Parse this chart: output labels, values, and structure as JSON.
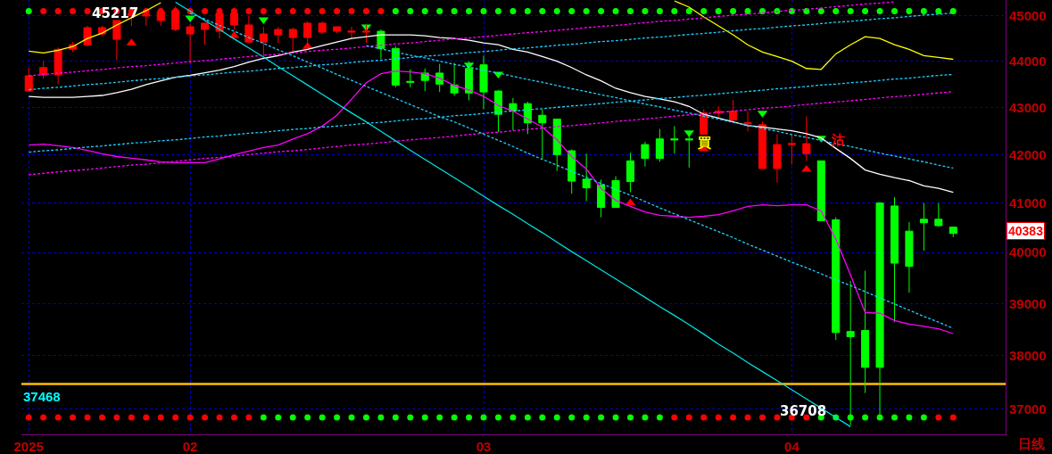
{
  "chart_data": {
    "type": "candlestick",
    "categories": [
      "2025",
      null,
      null,
      null,
      null,
      null,
      null,
      null,
      null,
      null,
      null,
      "02",
      null,
      null,
      null,
      null,
      null,
      null,
      null,
      null,
      null,
      null,
      null,
      null,
      null,
      null,
      null,
      null,
      null,
      null,
      null,
      "03",
      null,
      null,
      null,
      null,
      null,
      null,
      null,
      null,
      null,
      null,
      null,
      null,
      null,
      null,
      null,
      null,
      null,
      null,
      null,
      null,
      "04",
      null,
      null,
      null,
      null,
      null,
      null,
      null,
      null,
      null,
      null,
      null
    ],
    "ohlc": [
      [
        43350,
        43860,
        43330,
        43680
      ],
      [
        43700,
        44000,
        43620,
        43860
      ],
      [
        43700,
        44300,
        43500,
        44260
      ],
      [
        44260,
        44420,
        44200,
        44360
      ],
      [
        44360,
        44780,
        44320,
        44740
      ],
      [
        44600,
        44780,
        44560,
        44740
      ],
      [
        44480,
        44900,
        44020,
        44900
      ],
      [
        45000,
        45100,
        44780,
        45060
      ],
      [
        45000,
        45100,
        44780,
        45040
      ],
      [
        44900,
        45180,
        44780,
        45100
      ],
      [
        44700,
        45217,
        44660,
        45120
      ],
      [
        44600,
        44820,
        43940,
        44760
      ],
      [
        44700,
        44840,
        44360,
        44840
      ],
      [
        44660,
        45100,
        44500,
        45060
      ],
      [
        44800,
        45180,
        44700,
        45060
      ],
      [
        44420,
        45000,
        44400,
        44800
      ],
      [
        44420,
        44760,
        44100,
        44600
      ],
      [
        44580,
        44760,
        44400,
        44700
      ],
      [
        44520,
        44740,
        44200,
        44700
      ],
      [
        44520,
        44880,
        44320,
        44840
      ],
      [
        44640,
        44880,
        44600,
        44840
      ],
      [
        44660,
        44760,
        44620,
        44760
      ],
      [
        44640,
        44760,
        44500,
        44660
      ],
      [
        44640,
        44800,
        44400,
        44660
      ],
      [
        44660,
        44700,
        44040,
        44280
      ],
      [
        44280,
        44320,
        43430,
        43480
      ],
      [
        43560,
        43820,
        43430,
        43540
      ],
      [
        43740,
        43840,
        43350,
        43580
      ],
      [
        43740,
        43940,
        43330,
        43500
      ],
      [
        43480,
        43960,
        43250,
        43310
      ],
      [
        43840,
        44000,
        43150,
        43310
      ],
      [
        43920,
        44120,
        42960,
        43330
      ],
      [
        43350,
        43370,
        42470,
        42850
      ],
      [
        43080,
        43200,
        42510,
        42920
      ],
      [
        43080,
        43120,
        42430,
        42670
      ],
      [
        42830,
        42960,
        41920,
        42670
      ],
      [
        42750,
        42750,
        41660,
        42000
      ],
      [
        42080,
        42110,
        41190,
        41450
      ],
      [
        41490,
        42020,
        41040,
        41310
      ],
      [
        41370,
        41480,
        40710,
        40910
      ],
      [
        41460,
        41550,
        40910,
        40910
      ],
      [
        41870,
        42040,
        41220,
        41440
      ],
      [
        42210,
        42270,
        41750,
        41920
      ],
      [
        42330,
        42540,
        41850,
        41920
      ],
      [
        42330,
        42600,
        42020,
        42310
      ],
      [
        42330,
        42460,
        41730,
        42310
      ],
      [
        42430,
        42960,
        42430,
        42880
      ],
      [
        42880,
        43020,
        42760,
        42920
      ],
      [
        42730,
        43160,
        42670,
        42920
      ],
      [
        42650,
        42900,
        42490,
        42670
      ],
      [
        41710,
        42690,
        41710,
        42630
      ],
      [
        41710,
        42430,
        41420,
        42210
      ],
      [
        42210,
        42430,
        41790,
        42230
      ],
      [
        42020,
        42810,
        41870,
        42230
      ],
      [
        41870,
        41870,
        40640,
        40640
      ],
      [
        40660,
        40710,
        38300,
        38440
      ],
      [
        38460,
        39440,
        36708,
        38360
      ],
      [
        38480,
        39640,
        37300,
        37780
      ],
      [
        41000,
        41020,
        36860,
        37780
      ],
      [
        40940,
        41120,
        38640,
        39790
      ],
      [
        40430,
        40610,
        39210,
        39730
      ],
      [
        40670,
        41000,
        40040,
        40600
      ],
      [
        40670,
        41000,
        40520,
        40540
      ],
      [
        40510,
        40520,
        40310,
        40383
      ]
    ],
    "colors": [
      "#ff0000",
      "#ff0000",
      "#ff0000",
      "#ff0000",
      "#ff0000",
      "#ff0000",
      "#ff0000",
      "#ff0000",
      "#ff0000",
      "#ff0000",
      "#ff0000",
      "#ff0000",
      "#ff0000",
      "#ff0000",
      "#ff0000",
      "#ff0000",
      "#ff0000",
      "#ff0000",
      "#ff0000",
      "#ff0000",
      "#ff0000",
      "#ff0000",
      "#ff0000",
      "#ff0000",
      "#00ff00",
      "#00ff00",
      "#00ff00",
      "#00ff00",
      "#00ff00",
      "#00ff00",
      "#00ff00",
      "#00ff00",
      "#00ff00",
      "#00ff00",
      "#00ff00",
      "#00ff00",
      "#00ff00",
      "#00ff00",
      "#00ff00",
      "#00ff00",
      "#00ff00",
      "#00ff00",
      "#00ff00",
      "#00ff00",
      "#00ff00",
      "#00ff00",
      "#ff0000",
      "#ff0000",
      "#ff0000",
      "#ff0000",
      "#ff0000",
      "#ff0000",
      "#ff0000",
      "#ff0000",
      "#00ff00",
      "#00ff00",
      "#00ff00",
      "#00ff00",
      "#00ff00",
      "#00ff00",
      "#00ff00",
      "#00ff00",
      "#00ff00",
      "#00ff00"
    ],
    "series": [
      {
        "type": "line",
        "color": "#ffff00",
        "line_style": "solid",
        "values": [
          44220,
          44180,
          44240,
          44320,
          44500,
          44620,
          44800,
          44960,
          45120,
          45300,
          null,
          null,
          null,
          null,
          null,
          null,
          null,
          null,
          null,
          null,
          null,
          null,
          null,
          null,
          null,
          null,
          null,
          null,
          null,
          null,
          null,
          null,
          null,
          null,
          null,
          null,
          null,
          null,
          null,
          null,
          null,
          null,
          null,
          null,
          45340,
          45200,
          44980,
          44780,
          44580,
          44360,
          44200,
          44100,
          44000,
          43840,
          43820,
          44160,
          44360,
          44540,
          44500,
          44360,
          44260,
          44120,
          44080,
          44040
        ]
      },
      {
        "type": "line",
        "color": "#ffffff",
        "line_style": "solid",
        "values": [
          43235,
          43215,
          43215,
          43215,
          43235,
          43255,
          43315,
          43390,
          43490,
          43570,
          43650,
          43690,
          43745,
          43805,
          43880,
          43980,
          44060,
          44120,
          44200,
          44260,
          44340,
          44420,
          44500,
          44540,
          44580,
          44580,
          44580,
          44560,
          44520,
          44500,
          44460,
          44400,
          44360,
          44260,
          44200,
          44100,
          44000,
          43860,
          43700,
          43570,
          43410,
          43315,
          43235,
          43180,
          43120,
          43020,
          42850,
          42770,
          42690,
          42610,
          42580,
          42540,
          42500,
          42440,
          42350,
          42130,
          41920,
          41680,
          41590,
          41520,
          41460,
          41350,
          41300,
          41220
        ]
      },
      {
        "type": "line",
        "color": "#ff00ff",
        "line_style": "solid",
        "values": [
          42200,
          42220,
          42185,
          42150,
          42090,
          42020,
          41960,
          41925,
          41890,
          41850,
          41830,
          41830,
          41830,
          41910,
          42000,
          42075,
          42150,
          42200,
          42326,
          42440,
          42600,
          42830,
          43176,
          43530,
          43725,
          43785,
          43765,
          43725,
          43630,
          43470,
          43375,
          43235,
          43040,
          42920,
          42750,
          42580,
          42310,
          41960,
          41700,
          41300,
          41055,
          40930,
          40820,
          40750,
          40730,
          40710,
          40730,
          40765,
          40840,
          40930,
          40965,
          40945,
          40965,
          40965,
          40840,
          40273,
          39560,
          38825,
          38810,
          38670,
          38600,
          38560,
          38510,
          38420
        ]
      },
      {
        "type": "line",
        "color": "#00e0e0",
        "line_style": "solid",
        "values": [
          null,
          null,
          null,
          null,
          null,
          null,
          null,
          null,
          null,
          null,
          45310,
          45110,
          44900,
          44700,
          44490,
          44290,
          44090,
          43880,
          43680,
          43480,
          43280,
          43080,
          42880,
          42690,
          42490,
          42290,
          42090,
          41900,
          41710,
          41520,
          41330,
          41140,
          40950,
          40770,
          40580,
          40400,
          40210,
          40020,
          39840,
          39660,
          39480,
          39300,
          39120,
          38940,
          38770,
          38590,
          38410,
          38220,
          38050,
          37870,
          37700,
          37530,
          37360,
          37190,
          37020,
          36850,
          36680,
          null,
          null,
          null,
          null,
          null,
          null,
          null
        ]
      },
      {
        "type": "line",
        "color": "#22ccff",
        "line_style": "dotted",
        "values": [
          42050,
          42080,
          42100,
          42130,
          42160,
          42180,
          42210,
          42240,
          42260,
          42290,
          42310,
          42340,
          42370,
          42390,
          42420,
          42450,
          42470,
          42500,
          42530,
          42550,
          42580,
          42600,
          42630,
          42660,
          42680,
          42710,
          42740,
          42760,
          42790,
          42820,
          42840,
          42870,
          42900,
          42920,
          42950,
          42970,
          43000,
          43030,
          43050,
          43080,
          43110,
          43130,
          43160,
          43190,
          43210,
          43240,
          43260,
          43290,
          43320,
          43340,
          43370,
          43400,
          43420,
          43450,
          43480,
          43500,
          43530,
          43550,
          43580,
          43610,
          43630,
          43660,
          43690,
          43710
        ]
      },
      {
        "type": "line",
        "color": "#ff00ff",
        "line_style": "dotted",
        "values": [
          41580,
          41610,
          41640,
          41670,
          41690,
          41720,
          41750,
          41780,
          41800,
          41830,
          41860,
          41890,
          41920,
          41940,
          41970,
          42000,
          42030,
          42060,
          42080,
          42110,
          42140,
          42170,
          42200,
          42220,
          42250,
          42280,
          42310,
          42335,
          42360,
          42390,
          42420,
          42450,
          42470,
          42500,
          42530,
          42560,
          42590,
          42610,
          42640,
          42670,
          42700,
          42725,
          42750,
          42780,
          42810,
          42840,
          42860,
          42890,
          42920,
          42950,
          42980,
          43000,
          43030,
          43060,
          43090,
          43115,
          43140,
          43170,
          43200,
          43230,
          43250,
          43280,
          43310,
          43340
        ]
      },
      {
        "type": "line",
        "color": "#22ccff",
        "line_style": "dotted",
        "values": [
          43380,
          43410,
          43430,
          43460,
          43490,
          43510,
          43540,
          43570,
          43600,
          43620,
          43650,
          43680,
          43700,
          43730,
          43760,
          43780,
          43810,
          43840,
          43860,
          43890,
          43920,
          43940,
          43970,
          44000,
          44020,
          44050,
          44080,
          44110,
          44130,
          44160,
          44190,
          44210,
          44240,
          44270,
          44290,
          44320,
          44350,
          44370,
          44400,
          44430,
          44450,
          44480,
          44510,
          44530,
          44560,
          44590,
          44610,
          44640,
          44670,
          44700,
          44720,
          44750,
          44780,
          44800,
          44830,
          44860,
          44880,
          44910,
          44940,
          44960,
          44990,
          45020,
          45040,
          45070
        ]
      },
      {
        "type": "line",
        "color": "#ff00ff",
        "line_style": "dotted",
        "values": [
          43680,
          43710,
          43740,
          43760,
          43790,
          43820,
          43850,
          43880,
          43900,
          43930,
          43960,
          43990,
          44010,
          44040,
          44070,
          44100,
          44130,
          44150,
          44180,
          44210,
          44240,
          44260,
          44290,
          44320,
          44350,
          44380,
          44400,
          44430,
          44460,
          44490,
          44510,
          44540,
          44570,
          44600,
          44630,
          44650,
          44680,
          44710,
          44740,
          44770,
          44790,
          44820,
          44850,
          44880,
          44900,
          44930,
          44960,
          44990,
          45020,
          45040,
          45070,
          45100,
          45130,
          45150,
          45180,
          45210,
          45240,
          45270,
          45290,
          45320,
          null,
          null,
          null,
          null
        ]
      },
      {
        "type": "line",
        "color": "#22ccff",
        "line_style": "dotted",
        "values": [
          null,
          null,
          null,
          null,
          null,
          null,
          null,
          null,
          null,
          null,
          null,
          45060,
          44930,
          44790,
          44660,
          44520,
          44390,
          44250,
          44120,
          43980,
          43850,
          43710,
          43580,
          43450,
          43320,
          43190,
          43060,
          42930,
          42800,
          42690,
          42560,
          42430,
          42300,
          42170,
          42030,
          41900,
          41780,
          41650,
          41530,
          41400,
          41280,
          41160,
          41030,
          40900,
          40780,
          40660,
          40540,
          40420,
          40300,
          40170,
          40050,
          39930,
          39810,
          39700,
          39580,
          39460,
          39350,
          39230,
          39110,
          38990,
          38870,
          38750,
          38640,
          38520
        ]
      },
      {
        "type": "line",
        "color": "#22ccff",
        "line_style": "dotted",
        "values": [
          null,
          null,
          null,
          null,
          null,
          null,
          null,
          null,
          null,
          null,
          null,
          null,
          null,
          null,
          null,
          null,
          null,
          null,
          null,
          null,
          null,
          null,
          null,
          44340,
          44270,
          44200,
          44130,
          44070,
          44000,
          43930,
          43870,
          43800,
          43740,
          43670,
          43600,
          43540,
          43470,
          43400,
          43340,
          43270,
          43210,
          43140,
          43070,
          43010,
          42940,
          42880,
          42810,
          42750,
          42680,
          42620,
          42550,
          42490,
          42420,
          42360,
          42300,
          42230,
          42170,
          42100,
          42030,
          41970,
          41910,
          41850,
          41780,
          41720
        ]
      },
      {
        "type": "scatter",
        "marker": "circle",
        "values": [
          45110,
          45110,
          45110,
          45110,
          45110,
          45110,
          45110,
          45110,
          45110,
          45110,
          45110,
          45110,
          45110,
          45110,
          45110,
          45110,
          45110,
          45110,
          45110,
          45110,
          45110,
          45110,
          45110,
          45110,
          45110,
          45110,
          45110,
          45110,
          45110,
          45110,
          45110,
          45110,
          45110,
          45110,
          45110,
          45110,
          45110,
          45110,
          45110,
          45110,
          45110,
          45110,
          45110,
          45110,
          45110,
          45110,
          45110,
          45110,
          45110,
          45110,
          45110,
          45110,
          45110,
          45110,
          45110,
          45110,
          45110,
          45110,
          45110,
          45110,
          45110,
          45110,
          45110,
          45110
        ],
        "colors": [
          "#00ff00",
          "#ff0000",
          "#ff0000",
          "#ff0000",
          "#ff0000",
          "#ff0000",
          "#ff0000",
          "#ff0000",
          "#ff0000",
          "#ff0000",
          "#ff0000",
          "#ff0000",
          "#ff0000",
          "#ff0000",
          "#ff0000",
          "#ff0000",
          "#ff0000",
          "#ff0000",
          "#ff0000",
          "#ff0000",
          "#ff0000",
          "#ff0000",
          "#ff0000",
          "#ff0000",
          "#ff0000",
          "#00ff00",
          "#00ff00",
          "#00ff00",
          "#00ff00",
          "#00ff00",
          "#00ff00",
          "#00ff00",
          "#00ff00",
          "#00ff00",
          "#00ff00",
          "#00ff00",
          "#00ff00",
          "#00ff00",
          "#00ff00",
          "#00ff00",
          "#00ff00",
          "#00ff00",
          "#00ff00",
          "#00ff00",
          "#00ff00",
          "#00ff00",
          "#00ff00",
          "#00ff00",
          "#00ff00",
          "#00ff00",
          "#00ff00",
          "#00ff00",
          "#00ff00",
          "#00ff00",
          "#00ff00",
          "#00ff00",
          "#00ff00",
          "#00ff00",
          "#00ff00",
          "#00ff00",
          "#00ff00",
          "#00ff00",
          "#00ff00",
          "#00ff00"
        ]
      },
      {
        "type": "scatter",
        "marker": "circle",
        "values": [
          36850,
          36850,
          36850,
          36850,
          36850,
          36850,
          36850,
          36850,
          36850,
          36850,
          36850,
          36850,
          36850,
          36850,
          36850,
          36850,
          36850,
          36850,
          36850,
          36850,
          36850,
          36850,
          36850,
          36850,
          36850,
          36850,
          36850,
          36850,
          36850,
          36850,
          36850,
          36850,
          36850,
          36850,
          36850,
          36850,
          36850,
          36850,
          36850,
          36850,
          36850,
          36850,
          36850,
          36850,
          36850,
          36850,
          36850,
          36850,
          36850,
          36850,
          36850,
          36850,
          36850,
          36850,
          36850,
          36850,
          36850,
          36850,
          36850,
          36850,
          36850,
          36850,
          36850,
          36850
        ],
        "colors": [
          "#ff0000",
          "#ff0000",
          "#ff0000",
          "#ff0000",
          "#ff0000",
          "#ff0000",
          "#ff0000",
          "#ff0000",
          "#ff0000",
          "#ff0000",
          "#ff0000",
          "#ff0000",
          "#ff0000",
          "#ff0000",
          "#ff0000",
          "#ff0000",
          "#00ff00",
          "#00ff00",
          "#00ff00",
          "#00ff00",
          "#00ff00",
          "#00ff00",
          "#00ff00",
          "#00ff00",
          "#00ff00",
          "#00ff00",
          "#00ff00",
          "#00ff00",
          "#00ff00",
          "#00ff00",
          "#00ff00",
          "#00ff00",
          "#00ff00",
          "#00ff00",
          "#00ff00",
          "#00ff00",
          "#00ff00",
          "#00ff00",
          "#00ff00",
          "#00ff00",
          "#00ff00",
          "#00ff00",
          "#00ff00",
          "#00ff00",
          "#ff0000",
          "#ff0000",
          "#ff0000",
          "#ff0000",
          "#ff0000",
          "#ff0000",
          "#ff0000",
          "#ff0000",
          "#ff0000",
          "#ff0000",
          "#00ff00",
          "#00ff00",
          "#00ff00",
          "#00ff00",
          "#00ff00",
          "#00ff00",
          "#00ff00",
          "#00ff00",
          "#ff0000",
          "#ff0000"
        ]
      },
      {
        "type": "scatter",
        "marker": "triangle",
        "color": "#ff0000",
        "values": [
          null,
          null,
          null,
          null,
          null,
          null,
          null,
          44400,
          null,
          null,
          null,
          null,
          null,
          null,
          44560,
          null,
          null,
          null,
          null,
          44320,
          null,
          null,
          null,
          null,
          null,
          null,
          null,
          null,
          null,
          null,
          null,
          null,
          null,
          null,
          null,
          null,
          null,
          null,
          null,
          null,
          null,
          41000,
          null,
          null,
          null,
          null,
          42120,
          null,
          null,
          null,
          null,
          null,
          null,
          41690,
          null,
          null,
          null,
          null,
          null,
          null,
          null,
          null,
          null,
          null
        ]
      },
      {
        "type": "scatter",
        "marker": "triangle-down",
        "color": "#00ff00",
        "values": [
          null,
          null,
          null,
          null,
          null,
          null,
          null,
          null,
          null,
          null,
          null,
          44960,
          null,
          null,
          null,
          null,
          44920,
          null,
          null,
          null,
          null,
          null,
          null,
          44760,
          null,
          null,
          null,
          null,
          null,
          null,
          43920,
          null,
          43720,
          null,
          null,
          null,
          null,
          null,
          null,
          null,
          null,
          null,
          null,
          null,
          null,
          42460,
          null,
          null,
          null,
          null,
          42880,
          null,
          null,
          null,
          42350,
          null,
          null,
          null,
          null,
          null,
          null,
          null,
          null,
          null
        ]
      }
    ],
    "ylim": [
      36540,
      45360
    ],
    "yticks": [
      37000,
      38000,
      39000,
      40000,
      41000,
      42000,
      43000,
      44000,
      45000
    ],
    "log": true,
    "grid": true,
    "ref_lines": [
      {
        "axis": "y",
        "value": 37468,
        "label": "37468",
        "color": "#ffc000"
      }
    ],
    "annotations": [
      "45217",
      "36708",
      "40383",
      "買",
      "沽",
      "日线"
    ]
  }
}
